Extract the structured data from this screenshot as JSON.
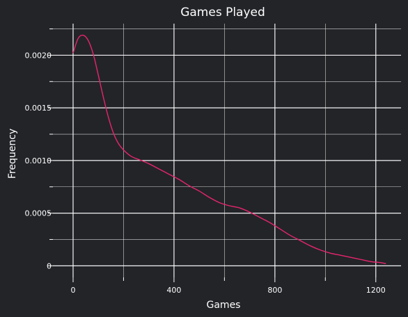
{
  "chart_data": {
    "type": "line",
    "title": "Games Played",
    "xlabel": "Games",
    "ylabel": "Frequency",
    "xlim": [
      -80,
      1300
    ],
    "ylim": [
      -0.00011,
      0.0023
    ],
    "x_ticks": [
      0,
      400,
      800,
      1200
    ],
    "x_tick_labels": [
      "0",
      "400",
      "800",
      "1200"
    ],
    "x_minor_ticks": [
      200,
      600,
      1000
    ],
    "y_ticks": [
      0,
      0.0005,
      0.001,
      0.0015,
      0.002
    ],
    "y_tick_labels": [
      "0",
      "0.0005",
      "0.0010",
      "0.0015",
      "0.0020"
    ],
    "y_minor_ticks": [
      0.00025,
      0.00075,
      0.00125,
      0.00175,
      0.00225
    ],
    "grid": true,
    "series": [
      {
        "color": "#e8246f",
        "x": [
          0,
          20,
          40,
          60,
          80,
          100,
          120,
          140,
          160,
          180,
          200,
          230,
          260,
          300,
          340,
          380,
          420,
          460,
          500,
          540,
          580,
          620,
          660,
          700,
          740,
          780,
          820,
          860,
          900,
          940,
          980,
          1020,
          1060,
          1100,
          1140,
          1180,
          1220,
          1240
        ],
        "values": [
          0.00202,
          0.00216,
          0.00219,
          0.00214,
          0.00201,
          0.00181,
          0.0016,
          0.00141,
          0.00126,
          0.00116,
          0.0011,
          0.00104,
          0.00101,
          0.00097,
          0.00092,
          0.00087,
          0.00082,
          0.00076,
          0.00071,
          0.00065,
          0.0006,
          0.00057,
          0.00055,
          0.00051,
          0.00046,
          0.00041,
          0.00035,
          0.00029,
          0.00024,
          0.00019,
          0.00015,
          0.00012,
          0.0001,
          8e-05,
          6e-05,
          4e-05,
          3e-05,
          2e-05
        ]
      }
    ]
  },
  "colors": {
    "background": "#232428",
    "grid": "#ffffff",
    "text": "#ffffff",
    "line": "#e8246f"
  }
}
